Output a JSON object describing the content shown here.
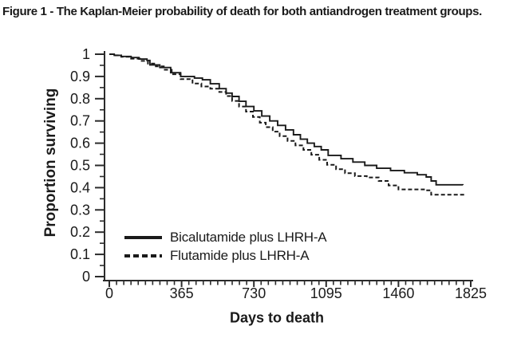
{
  "figure_title": "Figure 1 - The Kaplan-Meier probability of death for both antiandrogen treatment groups.",
  "chart_data": {
    "type": "line",
    "subtype": "kaplan-meier-step",
    "title": "Figure 1 - The Kaplan-Meier probability of death for both antiandrogen treatment groups.",
    "xlabel": "Days to death",
    "ylabel": "Proportion surviving",
    "xlim": [
      0,
      1825
    ],
    "ylim": [
      0,
      1
    ],
    "x_ticks": [
      0,
      365,
      730,
      1095,
      1460,
      1825
    ],
    "x_tick_labels": [
      "0",
      "365",
      "730",
      "1095",
      "1460",
      "1825"
    ],
    "x_minor_tick_step": 36.5,
    "y_ticks": [
      0,
      0.1,
      0.2,
      0.3,
      0.4,
      0.5,
      0.6,
      0.7,
      0.8,
      0.9,
      1
    ],
    "y_tick_labels": [
      "0",
      "0.1",
      "0.2",
      "0.3",
      "0.4",
      "0.5",
      "0.6",
      "0.7",
      "0.8",
      "0.9",
      "1"
    ],
    "y_minor_tick_step": 0.05,
    "grid": false,
    "legend_position": "inside-lower-left",
    "axis_color": "#2b2b2b",
    "line_color": "#1a1a1a",
    "series": [
      {
        "name": "Bicalutamide plus LHRH-A",
        "style": "solid",
        "points": [
          [
            0,
            1.0
          ],
          [
            25,
            0.995
          ],
          [
            60,
            0.99
          ],
          [
            110,
            0.985
          ],
          [
            150,
            0.978
          ],
          [
            190,
            0.972
          ],
          [
            205,
            0.952
          ],
          [
            255,
            0.94
          ],
          [
            310,
            0.917
          ],
          [
            360,
            0.9
          ],
          [
            430,
            0.893
          ],
          [
            470,
            0.885
          ],
          [
            510,
            0.867
          ],
          [
            555,
            0.845
          ],
          [
            590,
            0.825
          ],
          [
            620,
            0.81
          ],
          [
            655,
            0.788
          ],
          [
            690,
            0.765
          ],
          [
            730,
            0.745
          ],
          [
            770,
            0.722
          ],
          [
            810,
            0.7
          ],
          [
            850,
            0.68
          ],
          [
            890,
            0.66
          ],
          [
            930,
            0.638
          ],
          [
            965,
            0.618
          ],
          [
            1000,
            0.6
          ],
          [
            1035,
            0.585
          ],
          [
            1070,
            0.57
          ],
          [
            1105,
            0.545
          ],
          [
            1170,
            0.53
          ],
          [
            1230,
            0.515
          ],
          [
            1290,
            0.5
          ],
          [
            1350,
            0.487
          ],
          [
            1420,
            0.477
          ],
          [
            1490,
            0.467
          ],
          [
            1555,
            0.458
          ],
          [
            1600,
            0.448
          ],
          [
            1625,
            0.43
          ],
          [
            1650,
            0.413
          ],
          [
            1785,
            0.412
          ]
        ]
      },
      {
        "name": "Flutamide plus LHRH-A",
        "style": "dashed",
        "points": [
          [
            0,
            1.0
          ],
          [
            25,
            0.995
          ],
          [
            60,
            0.988
          ],
          [
            110,
            0.98
          ],
          [
            155,
            0.97
          ],
          [
            195,
            0.958
          ],
          [
            235,
            0.945
          ],
          [
            275,
            0.93
          ],
          [
            315,
            0.91
          ],
          [
            360,
            0.888
          ],
          [
            420,
            0.868
          ],
          [
            465,
            0.855
          ],
          [
            510,
            0.845
          ],
          [
            555,
            0.83
          ],
          [
            590,
            0.812
          ],
          [
            620,
            0.79
          ],
          [
            655,
            0.765
          ],
          [
            690,
            0.742
          ],
          [
            725,
            0.718
          ],
          [
            760,
            0.692
          ],
          [
            790,
            0.672
          ],
          [
            825,
            0.652
          ],
          [
            860,
            0.632
          ],
          [
            900,
            0.61
          ],
          [
            940,
            0.59
          ],
          [
            980,
            0.57
          ],
          [
            1020,
            0.548
          ],
          [
            1060,
            0.525
          ],
          [
            1100,
            0.503
          ],
          [
            1145,
            0.483
          ],
          [
            1190,
            0.465
          ],
          [
            1240,
            0.452
          ],
          [
            1300,
            0.446
          ],
          [
            1360,
            0.43
          ],
          [
            1410,
            0.41
          ],
          [
            1460,
            0.392
          ],
          [
            1600,
            0.388
          ],
          [
            1625,
            0.368
          ],
          [
            1797,
            0.368
          ]
        ]
      }
    ]
  }
}
